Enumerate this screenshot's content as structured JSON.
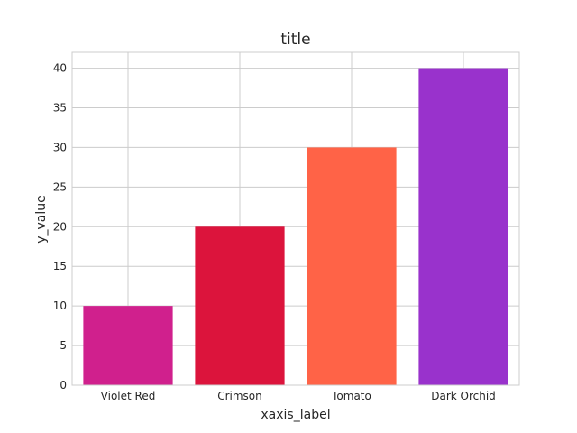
{
  "chart_data": {
    "type": "bar",
    "title": "title",
    "xlabel": "xaxis_label",
    "ylabel": "y_value",
    "categories": [
      "Violet Red",
      "Crimson",
      "Tomato",
      "Dark Orchid"
    ],
    "values": [
      10,
      20,
      30,
      40
    ],
    "colors": [
      "#d0208d",
      "#dc143c",
      "#ff6347",
      "#9932cc"
    ],
    "ylim": [
      0,
      42
    ],
    "yticks": [
      0,
      5,
      10,
      15,
      20,
      25,
      30,
      35,
      40
    ],
    "grid": true,
    "legend": "none"
  }
}
